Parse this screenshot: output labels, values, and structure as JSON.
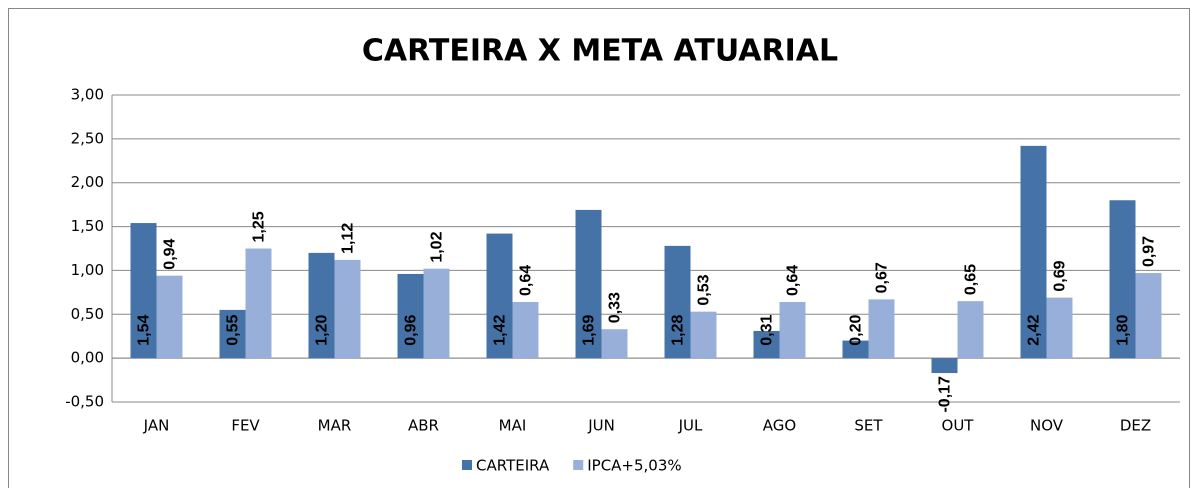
{
  "chart_data": {
    "type": "bar",
    "title": "CARTEIRA X META ATUARIAL",
    "categories": [
      "JAN",
      "FEV",
      "MAR",
      "ABR",
      "MAI",
      "JUN",
      "JUL",
      "AGO",
      "SET",
      "OUT",
      "NOV",
      "DEZ"
    ],
    "series": [
      {
        "name": "CARTEIRA",
        "color": "#4572a7",
        "values": [
          1.54,
          0.55,
          1.2,
          0.96,
          1.42,
          1.69,
          1.28,
          0.31,
          0.2,
          -0.17,
          2.42,
          1.8
        ],
        "value_labels": [
          "1,54",
          "0,55",
          "1,20",
          "0,96",
          "1,42",
          "1,69",
          "1,28",
          "0,31",
          "0,20",
          "-0,17",
          "2,42",
          "1,80"
        ]
      },
      {
        "name": "IPCA+5,03%",
        "color": "#98b0d9",
        "values": [
          0.94,
          1.25,
          1.12,
          1.02,
          0.64,
          0.33,
          0.53,
          0.64,
          0.67,
          0.65,
          0.69,
          0.97
        ],
        "value_labels": [
          "0,94",
          "1,25",
          "1,12",
          "1,02",
          "0,64",
          "0,33",
          "0,53",
          "0,64",
          "0,67",
          "0,65",
          "0,69",
          "0,97"
        ]
      }
    ],
    "ylim": [
      -0.5,
      3.0
    ],
    "yticks": [
      {
        "value": -0.5,
        "label": "-0,50"
      },
      {
        "value": 0,
        "label": "0,00"
      },
      {
        "value": 0.5,
        "label": "0,50"
      },
      {
        "value": 1.0,
        "label": "1,00"
      },
      {
        "value": 1.5,
        "label": "1,50"
      },
      {
        "value": 2.0,
        "label": "2,00"
      },
      {
        "value": 2.5,
        "label": "2,50"
      },
      {
        "value": 3.0,
        "label": "3,00"
      }
    ],
    "grid": true,
    "legend": "bottom"
  }
}
